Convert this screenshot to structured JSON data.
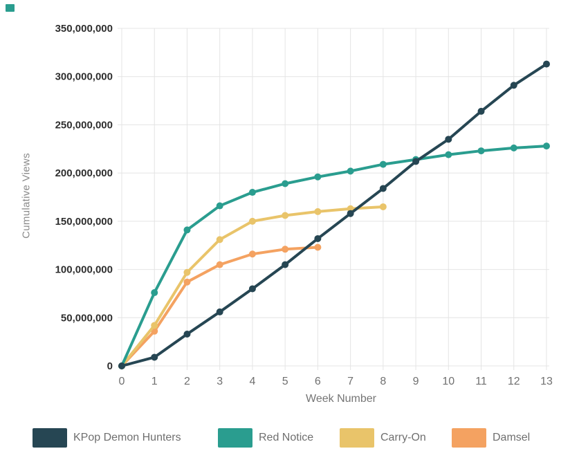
{
  "page": {
    "background": "#ffffff",
    "corner_mark_color": "#2a9d8f"
  },
  "chart_data": {
    "type": "line",
    "title": "",
    "xlabel": "Week Number",
    "ylabel": "Cumulative Views",
    "xlim": [
      0,
      13
    ],
    "ylim": [
      0,
      350000000
    ],
    "grid": true,
    "legend_position": "bottom",
    "x_ticks": [
      0,
      1,
      2,
      3,
      4,
      5,
      6,
      7,
      8,
      9,
      10,
      11,
      12,
      13
    ],
    "x_tick_labels": [
      "0",
      "1",
      "2",
      "3",
      "4",
      "5",
      "6",
      "7",
      "8",
      "9",
      "10",
      "11",
      "12",
      "13"
    ],
    "y_ticks": [
      0,
      50000000,
      100000000,
      150000000,
      200000000,
      250000000,
      300000000,
      350000000
    ],
    "y_tick_labels": [
      "0",
      "50,000,000",
      "100,000,000",
      "150,000,000",
      "200,000,000",
      "250,000,000",
      "300,000,000",
      "350,000,000"
    ],
    "series": [
      {
        "name": "KPop Demon Hunters",
        "color": "#264653",
        "x": [
          0,
          1,
          2,
          3,
          4,
          5,
          6,
          7,
          8,
          9,
          10,
          11,
          12,
          13
        ],
        "values": [
          0,
          9000000,
          33000000,
          56000000,
          80000000,
          105000000,
          132000000,
          158000000,
          184000000,
          212000000,
          235000000,
          264000000,
          291000000,
          313000000
        ]
      },
      {
        "name": "Red Notice",
        "color": "#2a9d8f",
        "x": [
          0,
          1,
          2,
          3,
          4,
          5,
          6,
          7,
          8,
          9,
          10,
          11,
          12,
          13
        ],
        "values": [
          0,
          76000000,
          141000000,
          166000000,
          180000000,
          189000000,
          196000000,
          202000000,
          209000000,
          214000000,
          219000000,
          223000000,
          226000000,
          228000000
        ]
      },
      {
        "name": "Carry-On",
        "color": "#e9c46a",
        "x": [
          0,
          1,
          2,
          3,
          4,
          5,
          6,
          7,
          8
        ],
        "values": [
          0,
          42000000,
          97000000,
          131000000,
          150000000,
          156000000,
          160000000,
          163000000,
          165000000
        ]
      },
      {
        "name": "Damsel",
        "color": "#f4a261",
        "x": [
          0,
          1,
          2,
          3,
          4,
          5,
          6
        ],
        "values": [
          0,
          36000000,
          87000000,
          105000000,
          116000000,
          121000000,
          123000000
        ]
      }
    ]
  }
}
